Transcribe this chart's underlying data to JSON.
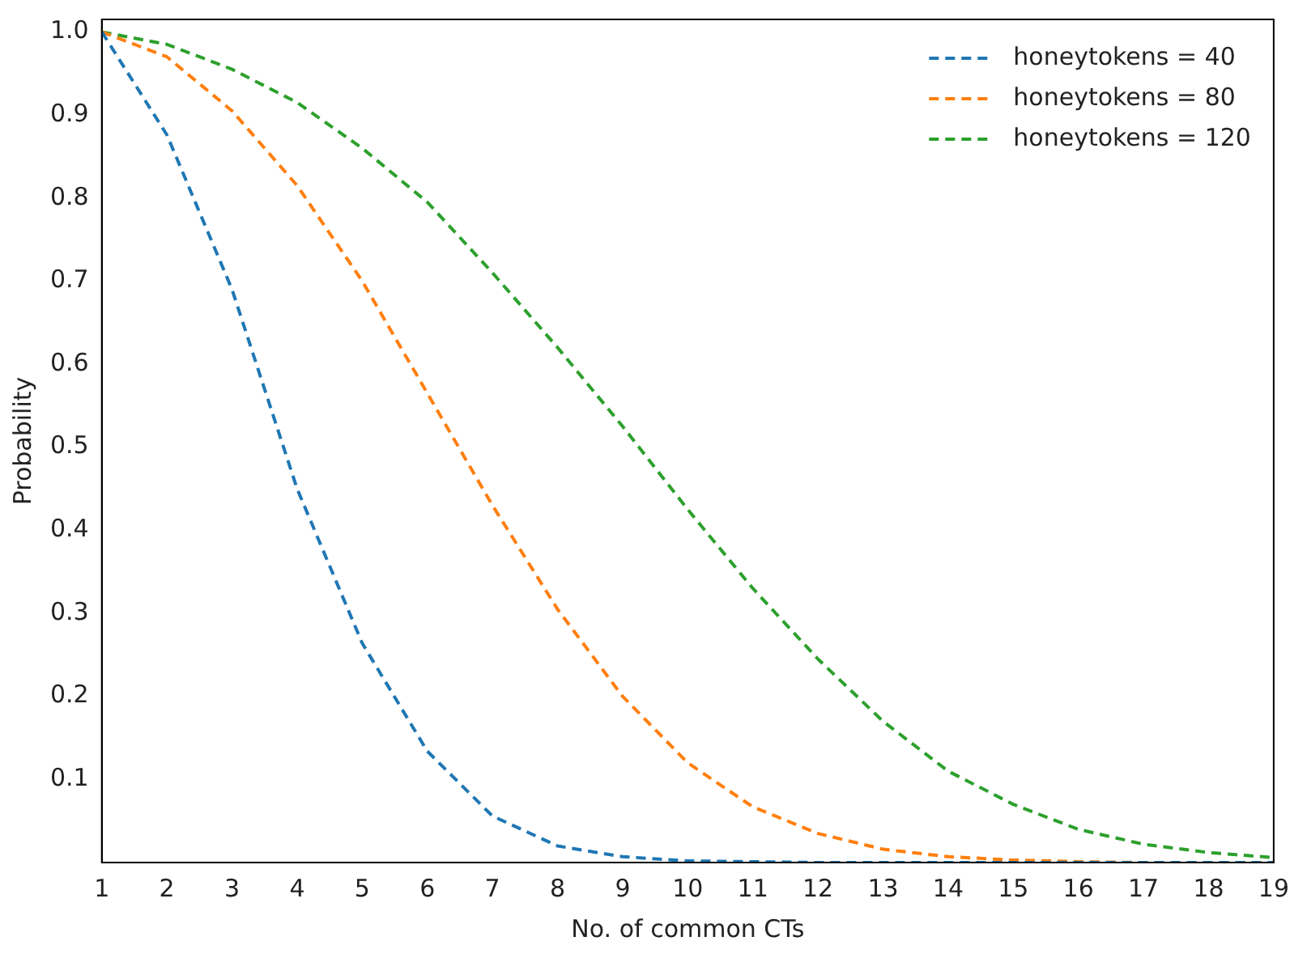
{
  "chart_data": {
    "type": "line",
    "xlabel": "No. of common CTs",
    "ylabel": "Probability",
    "x": [
      1,
      2,
      3,
      4,
      5,
      6,
      7,
      8,
      9,
      10,
      11,
      12,
      13,
      14,
      15,
      16,
      17,
      18,
      19
    ],
    "series": [
      {
        "name": "honeytokens = 40",
        "color": "#1f77b4",
        "values": [
          1.0,
          0.876,
          0.69,
          0.45,
          0.264,
          0.134,
          0.056,
          0.02,
          0.007,
          0.002,
          0.001,
          0,
          0,
          0,
          0,
          0,
          0,
          0,
          0
        ]
      },
      {
        "name": "honeytokens = 80",
        "color": "#ff7f0e",
        "values": [
          1.0,
          0.97,
          0.905,
          0.815,
          0.7,
          0.565,
          0.43,
          0.305,
          0.2,
          0.12,
          0.067,
          0.035,
          0.016,
          0.007,
          0.003,
          0.001,
          0,
          0,
          0
        ]
      },
      {
        "name": "honeytokens = 120",
        "color": "#2ca02c",
        "values": [
          1.0,
          0.985,
          0.955,
          0.915,
          0.86,
          0.795,
          0.71,
          0.62,
          0.525,
          0.425,
          0.33,
          0.245,
          0.17,
          0.11,
          0.07,
          0.04,
          0.022,
          0.012,
          0.006
        ]
      }
    ],
    "xlim": [
      1,
      19
    ],
    "xticks": [
      1,
      2,
      3,
      4,
      5,
      6,
      7,
      8,
      9,
      10,
      11,
      12,
      13,
      14,
      15,
      16,
      17,
      18,
      19
    ],
    "ylim": [
      0,
      1.015
    ],
    "yticks": [
      0.1,
      0.2,
      0.3,
      0.4,
      0.5,
      0.6,
      0.7,
      0.8,
      0.9,
      {
        "value": 1,
        "label": "1.0"
      }
    ],
    "grid": false,
    "legend": "top right",
    "marker": "none",
    "line_style": "dashed"
  }
}
